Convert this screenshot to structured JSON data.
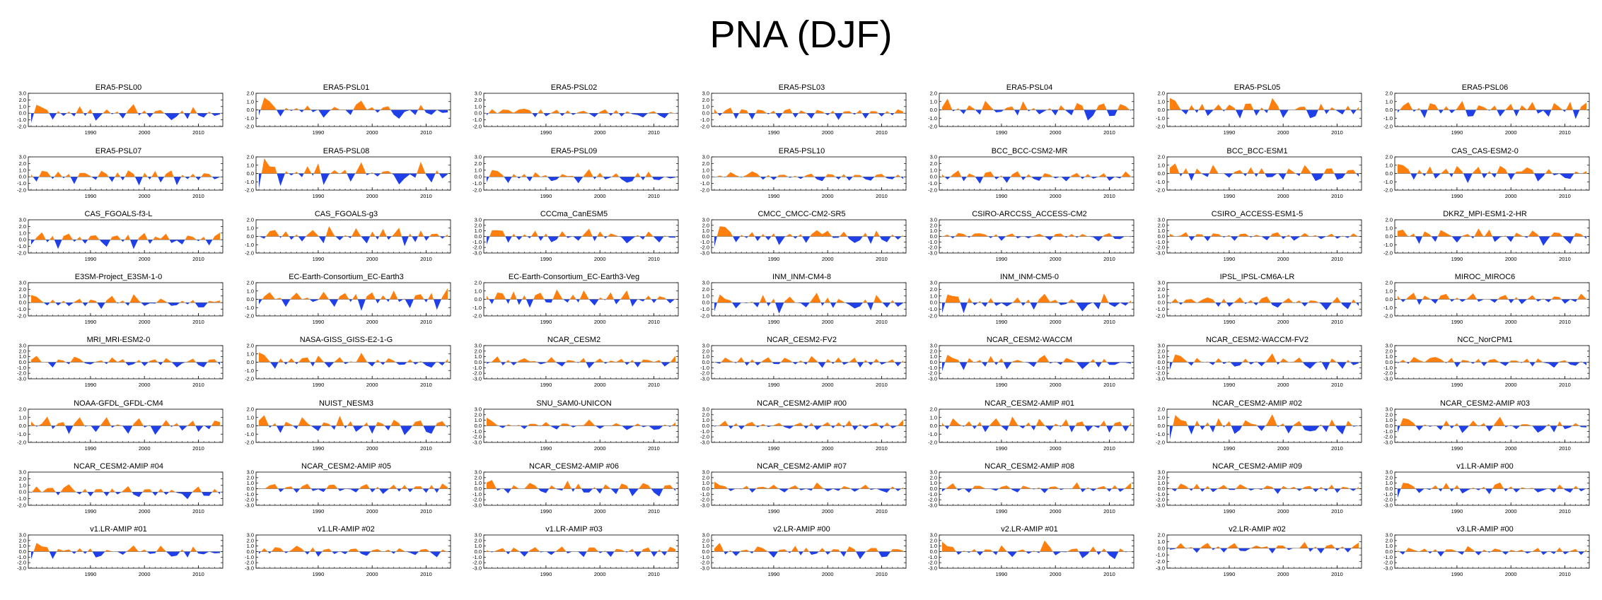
{
  "title": "PNA (DJF)",
  "colors": {
    "positive": "#ff7f0e",
    "negative": "#1f3fe8",
    "axis": "#000000"
  },
  "chart_data": {
    "type": "area",
    "layout": {
      "rows": 8,
      "cols": 7
    },
    "x_range": [
      1979,
      2014
    ],
    "x_ticks": [
      1990,
      2000,
      2010
    ],
    "panels": [
      {
        "name": "ERA5-PSL00",
        "ylim": [
          -2,
          3
        ],
        "yticks": [
          "3.0",
          "2.0",
          "1.0",
          "0.0",
          "-1.0",
          "-2.0"
        ]
      },
      {
        "name": "ERA5-PSL01",
        "ylim": [
          -2,
          2
        ],
        "yticks": [
          "2.0",
          "1.0",
          "0.0",
          "-1.0",
          "-2.0"
        ]
      },
      {
        "name": "ERA5-PSL02",
        "ylim": [
          -2,
          3
        ],
        "yticks": [
          "3.0",
          "2.0",
          "1.0",
          "0.0",
          "-1.0",
          "-2.0"
        ]
      },
      {
        "name": "ERA5-PSL03",
        "ylim": [
          -2,
          3
        ],
        "yticks": [
          "3.0",
          "2.0",
          "1.0",
          "0.0",
          "-1.0",
          "-2.0"
        ]
      },
      {
        "name": "ERA5-PSL04",
        "ylim": [
          -2,
          2
        ],
        "yticks": [
          "2.0",
          "1.0",
          "0.0",
          "-1.0",
          "-2.0"
        ]
      },
      {
        "name": "ERA5-PSL05",
        "ylim": [
          -2,
          2
        ],
        "yticks": [
          "2.0",
          "1.0",
          "0.0",
          "-1.0",
          "-2.0"
        ]
      },
      {
        "name": "ERA5-PSL06",
        "ylim": [
          -2,
          2
        ],
        "yticks": [
          "2.0",
          "1.0",
          "0.0",
          "-1.0",
          "-2.0"
        ]
      },
      {
        "name": "ERA5-PSL07",
        "ylim": [
          -2,
          3
        ],
        "yticks": [
          "3.0",
          "2.0",
          "1.0",
          "0.0",
          "-1.0",
          "-2.0"
        ]
      },
      {
        "name": "ERA5-PSL08",
        "ylim": [
          -2,
          2
        ],
        "yticks": [
          "2.0",
          "1.0",
          "0.0",
          "-1.0",
          "-2.0"
        ]
      },
      {
        "name": "ERA5-PSL09",
        "ylim": [
          -2,
          3
        ],
        "yticks": [
          "3.0",
          "2.0",
          "1.0",
          "0.0",
          "-1.0",
          "-2.0"
        ]
      },
      {
        "name": "ERA5-PSL10",
        "ylim": [
          -2,
          3
        ],
        "yticks": [
          "3.0",
          "2.0",
          "1.0",
          "0.0",
          "-1.0",
          "-2.0"
        ]
      },
      {
        "name": "BCC_BCC-CSM2-MR",
        "ylim": [
          -2,
          3
        ],
        "yticks": [
          "3.0",
          "2.0",
          "1.0",
          "0.0",
          "-1.0",
          "-2.0"
        ]
      },
      {
        "name": "BCC_BCC-ESM1",
        "ylim": [
          -2,
          2
        ],
        "yticks": [
          "2.0",
          "1.0",
          "0.0",
          "-1.0",
          "-2.0"
        ]
      },
      {
        "name": "CAS_CAS-ESM2-0",
        "ylim": [
          -2,
          2
        ],
        "yticks": [
          "2.0",
          "1.0",
          "0.0",
          "-1.0",
          "-2.0"
        ]
      },
      {
        "name": "CAS_FGOALS-f3-L",
        "ylim": [
          -2,
          3
        ],
        "yticks": [
          "3.0",
          "2.0",
          "1.0",
          "0.0",
          "-1.0",
          "-2.0"
        ]
      },
      {
        "name": "CAS_FGOALS-g3",
        "ylim": [
          -2,
          2
        ],
        "yticks": [
          "2.0",
          "1.0",
          "0.0",
          "-1.0",
          "-2.0"
        ]
      },
      {
        "name": "CCCma_CanESM5",
        "ylim": [
          -3,
          3
        ],
        "yticks": [
          "3.0",
          "2.0",
          "1.0",
          "0.0",
          "-1.0",
          "-2.0",
          "-3.0"
        ]
      },
      {
        "name": "CMCC_CMCC-CM2-SR5",
        "ylim": [
          -3,
          3
        ],
        "yticks": [
          "3.0",
          "2.0",
          "1.0",
          "0.0",
          "-1.0",
          "-2.0",
          "-3.0"
        ]
      },
      {
        "name": "CSIRO-ARCCSS_ACCESS-CM2",
        "ylim": [
          -3,
          3
        ],
        "yticks": [
          "3.0",
          "2.0",
          "1.0",
          "0.0",
          "-1.0",
          "-2.0",
          "-3.0"
        ]
      },
      {
        "name": "CSIRO_ACCESS-ESM1-5",
        "ylim": [
          -3,
          3
        ],
        "yticks": [
          "3.0",
          "2.0",
          "1.0",
          "0.0",
          "-1.0",
          "-2.0",
          "-3.0"
        ]
      },
      {
        "name": "DKRZ_MPI-ESM1-2-HR",
        "ylim": [
          -2,
          2
        ],
        "yticks": [
          "2.0",
          "1.0",
          "0.0",
          "-1.0",
          "-2.0"
        ]
      },
      {
        "name": "E3SM-Project_E3SM-1-0",
        "ylim": [
          -2,
          3
        ],
        "yticks": [
          "3.0",
          "2.0",
          "1.0",
          "0.0",
          "-1.0",
          "-2.0"
        ]
      },
      {
        "name": "EC-Earth-Consortium_EC-Earth3",
        "ylim": [
          -2,
          2
        ],
        "yticks": [
          "2.0",
          "1.0",
          "0.0",
          "-1.0",
          "-2.0"
        ]
      },
      {
        "name": "EC-Earth-Consortium_EC-Earth3-Veg",
        "ylim": [
          -2,
          2
        ],
        "yticks": [
          "2.0",
          "1.0",
          "0.0",
          "-1.0",
          "-2.0"
        ]
      },
      {
        "name": "INM_INM-CM4-8",
        "ylim": [
          -2,
          3
        ],
        "yticks": [
          "3.0",
          "2.0",
          "1.0",
          "0.0",
          "-1.0",
          "-2.0"
        ]
      },
      {
        "name": "INM_INM-CM5-0",
        "ylim": [
          -2,
          3
        ],
        "yticks": [
          "3.0",
          "2.0",
          "1.0",
          "0.0",
          "-1.0",
          "-2.0"
        ]
      },
      {
        "name": "IPSL_IPSL-CM6A-LR",
        "ylim": [
          -2,
          3
        ],
        "yticks": [
          "3.0",
          "2.0",
          "1.0",
          "0.0",
          "-1.0",
          "-2.0"
        ]
      },
      {
        "name": "MIROC_MIROC6",
        "ylim": [
          -2,
          2
        ],
        "yticks": [
          "2.0",
          "1.0",
          "0.0",
          "-1.0",
          "-2.0"
        ]
      },
      {
        "name": "MRI_MRI-ESM2-0",
        "ylim": [
          -3,
          3
        ],
        "yticks": [
          "3.0",
          "2.0",
          "1.0",
          "0.0",
          "-1.0",
          "-2.0",
          "-3.0"
        ]
      },
      {
        "name": "NASA-GISS_GISS-E2-1-G",
        "ylim": [
          -2,
          2
        ],
        "yticks": [
          "2.0",
          "1.0",
          "0.0",
          "-1.0",
          "-2.0"
        ]
      },
      {
        "name": "NCAR_CESM2",
        "ylim": [
          -3,
          3
        ],
        "yticks": [
          "3.0",
          "2.0",
          "1.0",
          "0.0",
          "-1.0",
          "-2.0",
          "-3.0"
        ]
      },
      {
        "name": "NCAR_CESM2-FV2",
        "ylim": [
          -3,
          3
        ],
        "yticks": [
          "3.0",
          "2.0",
          "1.0",
          "0.0",
          "-1.0",
          "-2.0",
          "-3.0"
        ]
      },
      {
        "name": "NCAR_CESM2-WACCM",
        "ylim": [
          -3,
          3
        ],
        "yticks": [
          "3.0",
          "2.0",
          "1.0",
          "0.0",
          "-1.0",
          "-2.0",
          "-3.0"
        ]
      },
      {
        "name": "NCAR_CESM2-WACCM-FV2",
        "ylim": [
          -3,
          3
        ],
        "yticks": [
          "3.0",
          "2.0",
          "1.0",
          "0.0",
          "-1.0",
          "-2.0",
          "-3.0"
        ]
      },
      {
        "name": "NCC_NorCPM1",
        "ylim": [
          -3,
          3
        ],
        "yticks": [
          "3.0",
          "2.0",
          "1.0",
          "0.0",
          "-1.0",
          "-2.0",
          "-3.0"
        ]
      },
      {
        "name": "NOAA-GFDL_GFDL-CM4",
        "ylim": [
          -2,
          2
        ],
        "yticks": [
          "2.0",
          "1.0",
          "0.0",
          "-1.0",
          "-2.0"
        ]
      },
      {
        "name": "NUIST_NESM3",
        "ylim": [
          -2,
          2
        ],
        "yticks": [
          "2.0",
          "1.0",
          "0.0",
          "-1.0",
          "-2.0"
        ]
      },
      {
        "name": "SNU_SAM0-UNICON",
        "ylim": [
          -3,
          3
        ],
        "yticks": [
          "3.0",
          "2.0",
          "1.0",
          "0.0",
          "-1.0",
          "-2.0",
          "-3.0"
        ]
      },
      {
        "name": "NCAR_CESM2-AMIP  #00",
        "ylim": [
          -3,
          3
        ],
        "yticks": [
          "3.0",
          "2.0",
          "1.0",
          "0.0",
          "-1.0",
          "-2.0",
          "-3.0"
        ]
      },
      {
        "name": "NCAR_CESM2-AMIP  #01",
        "ylim": [
          -2,
          2
        ],
        "yticks": [
          "2.0",
          "1.0",
          "0.0",
          "-1.0",
          "-2.0"
        ]
      },
      {
        "name": "NCAR_CESM2-AMIP  #02",
        "ylim": [
          -2,
          2
        ],
        "yticks": [
          "2.0",
          "1.0",
          "0.0",
          "-1.0",
          "-2.0"
        ]
      },
      {
        "name": "NCAR_CESM2-AMIP  #03",
        "ylim": [
          -3,
          3
        ],
        "yticks": [
          "3.0",
          "2.0",
          "1.0",
          "0.0",
          "-1.0",
          "-2.0",
          "-3.0"
        ]
      },
      {
        "name": "NCAR_CESM2-AMIP  #04",
        "ylim": [
          -2,
          3
        ],
        "yticks": [
          "3.0",
          "2.0",
          "1.0",
          "0.0",
          "-1.0",
          "-2.0"
        ]
      },
      {
        "name": "NCAR_CESM2-AMIP  #05",
        "ylim": [
          -3,
          3
        ],
        "yticks": [
          "3.0",
          "2.0",
          "1.0",
          "0.0",
          "-1.0",
          "-2.0",
          "-3.0"
        ]
      },
      {
        "name": "NCAR_CESM2-AMIP  #06",
        "ylim": [
          -3,
          3
        ],
        "yticks": [
          "3.0",
          "2.0",
          "1.0",
          "0.0",
          "-1.0",
          "-2.0",
          "-3.0"
        ]
      },
      {
        "name": "NCAR_CESM2-AMIP  #07",
        "ylim": [
          -3,
          3
        ],
        "yticks": [
          "3.0",
          "2.0",
          "1.0",
          "0.0",
          "-1.0",
          "-2.0",
          "-3.0"
        ]
      },
      {
        "name": "NCAR_CESM2-AMIP  #08",
        "ylim": [
          -3,
          3
        ],
        "yticks": [
          "3.0",
          "2.0",
          "1.0",
          "0.0",
          "-1.0",
          "-2.0",
          "-3.0"
        ]
      },
      {
        "name": "NCAR_CESM2-AMIP  #09",
        "ylim": [
          -3,
          3
        ],
        "yticks": [
          "3.0",
          "2.0",
          "1.0",
          "0.0",
          "-1.0",
          "-2.0",
          "-3.0"
        ]
      },
      {
        "name": "v1.LR-AMIP  #00",
        "ylim": [
          -3,
          3
        ],
        "yticks": [
          "3.0",
          "2.0",
          "1.0",
          "0.0",
          "-1.0",
          "-2.0",
          "-3.0"
        ]
      },
      {
        "name": "v1.LR-AMIP  #01",
        "ylim": [
          -3,
          3
        ],
        "yticks": [
          "3.0",
          "2.0",
          "1.0",
          "0.0",
          "-1.0",
          "-2.0",
          "-3.0"
        ]
      },
      {
        "name": "v1.LR-AMIP  #02",
        "ylim": [
          -3,
          3
        ],
        "yticks": [
          "3.0",
          "2.0",
          "1.0",
          "0.0",
          "-1.0",
          "-2.0",
          "-3.0"
        ]
      },
      {
        "name": "v1.LR-AMIP  #03",
        "ylim": [
          -3,
          3
        ],
        "yticks": [
          "3.0",
          "2.0",
          "1.0",
          "0.0",
          "-1.0",
          "-2.0",
          "-3.0"
        ]
      },
      {
        "name": "v2.LR-AMIP  #00",
        "ylim": [
          -3,
          3
        ],
        "yticks": [
          "3.0",
          "2.0",
          "1.0",
          "0.0",
          "-1.0",
          "-2.0",
          "-3.0"
        ]
      },
      {
        "name": "v2.LR-AMIP  #01",
        "ylim": [
          -3,
          3
        ],
        "yticks": [
          "3.0",
          "2.0",
          "1.0",
          "0.0",
          "-1.0",
          "-2.0",
          "-3.0"
        ]
      },
      {
        "name": "v2.LR-AMIP  #02",
        "ylim": [
          -3,
          2
        ],
        "yticks": [
          "2.0",
          "1.0",
          "0.0",
          "-1.0",
          "-2.0",
          "-3.0"
        ]
      },
      {
        "name": "v3.LR-AMIP  #00",
        "ylim": [
          -3,
          3
        ],
        "yticks": [
          "3.0",
          "2.0",
          "1.0",
          "0.0",
          "-1.0",
          "-2.0",
          "-3.0"
        ]
      }
    ],
    "series_patterns": [
      [
        -1.8,
        1.6,
        1.1,
        0.6,
        -1.2,
        0.4,
        -0.5,
        0.3,
        -0.6,
        1.3,
        -0.5,
        0.8,
        -1.4,
        -0.3,
        0.7,
        -0.2,
        0.3,
        -1.0,
        0.6,
        1.7,
        -0.4,
        0.5,
        -0.8,
        0.4,
        0.6,
        -0.3,
        -1.3,
        -0.6,
        0.5,
        -1.1,
        1.2,
        -0.4,
        -0.8,
        0.3,
        -0.5,
        -0.2
      ],
      [
        -1.7,
        1.9,
        1.3,
        0.9,
        -1.4,
        0.5,
        -0.4,
        0.6,
        -0.8,
        1.0,
        -0.6,
        0.5,
        -1.3,
        -0.5,
        0.6,
        -0.1,
        0.4,
        -1.1,
        0.4,
        1.8,
        -0.2,
        0.7,
        -0.6,
        0.2,
        0.8,
        -0.4,
        -1.5,
        -0.5,
        0.4,
        -1.3,
        1.0,
        -0.2,
        -1.0,
        0.2,
        -0.6,
        0.1
      ],
      [
        -0.4,
        0.6,
        -0.2,
        0.9,
        0.5,
        -0.3,
        0.7,
        1.2,
        0.4,
        -0.6,
        0.8,
        -0.9,
        0.2,
        0.6,
        -0.4,
        0.5,
        -0.7,
        0.3,
        0.9,
        -0.2,
        -1.1,
        0.4,
        0.7,
        -0.3,
        0.5,
        -0.8,
        0.6,
        0.2,
        -0.5,
        -1.2,
        0.3,
        0.8,
        -0.6,
        -1.0,
        0.4,
        -0.3
      ],
      [
        0.5,
        -0.3,
        0.4,
        1.1,
        -0.8,
        0.6,
        0.3,
        -1.2,
        0.7,
        0.9,
        -0.4,
        0.2,
        -0.9,
        0.5,
        1.0,
        -0.6,
        0.4,
        -0.2,
        -1.0,
        0.6,
        0.8,
        -0.5,
        0.3,
        -1.3,
        0.2,
        0.7,
        -0.4,
        0.5,
        -0.8,
        0.3,
        0.6,
        -1.0,
        0.4,
        -0.6,
        0.9,
        0.2
      ],
      [
        0.8,
        1.6,
        -0.3,
        0.4,
        -1.1,
        0.6,
        0.2,
        -0.5,
        1.3,
        0.4,
        -0.2,
        -0.8,
        0.5,
        0.3,
        -0.6,
        1.5,
        -0.4,
        0.7,
        -0.9,
        -0.3,
        0.5,
        -1.2,
        0.6,
        0.3,
        -0.7,
        0.9,
        0.4,
        -1.4,
        -0.5,
        0.6,
        0.8,
        -0.9,
        -1.2,
        0.4,
        0.7,
        -0.3
      ],
      [
        1.9,
        1.2,
        0.4,
        -0.8,
        0.5,
        -0.3,
        0.6,
        -1.0,
        0.3,
        0.7,
        -0.5,
        1.0,
        0.2,
        -1.2,
        0.4,
        0.8,
        -0.6,
        0.3,
        -0.4,
        1.6,
        0.5,
        -0.9,
        0.2,
        -0.3,
        0.6,
        0.4,
        -1.0,
        -0.6,
        0.8,
        -0.5,
        0.3,
        -0.8,
        -1.1,
        0.5,
        -0.4,
        0.3
      ],
      [
        -0.6,
        0.3,
        1.2,
        -0.4,
        0.5,
        -1.3,
        0.6,
        0.9,
        -0.2,
        0.4,
        -0.7,
        0.3,
        1.1,
        -0.5,
        -1.0,
        0.4,
        0.6,
        -0.3,
        0.7,
        -1.4,
        0.3,
        0.8,
        -0.6,
        0.5,
        -0.2,
        1.3,
        -0.8,
        0.3,
        -1.1,
        0.5,
        0.6,
        -0.4,
        0.8,
        -1.2,
        0.3,
        1.5
      ],
      [
        0.3,
        -0.5,
        0.9,
        0.6,
        -0.3,
        1.1,
        -0.7,
        0.4,
        -1.0,
        0.5,
        0.8,
        -0.2,
        -0.6,
        1.4,
        0.3,
        -0.8,
        0.5,
        -0.4,
        1.0,
        0.2,
        -1.1,
        0.6,
        -0.3,
        0.8,
        -0.7,
        0.4,
        0.9,
        -1.2,
        0.3,
        -0.5,
        0.7,
        -0.9,
        0.4,
        0.6,
        -0.8,
        0.2
      ]
    ]
  }
}
